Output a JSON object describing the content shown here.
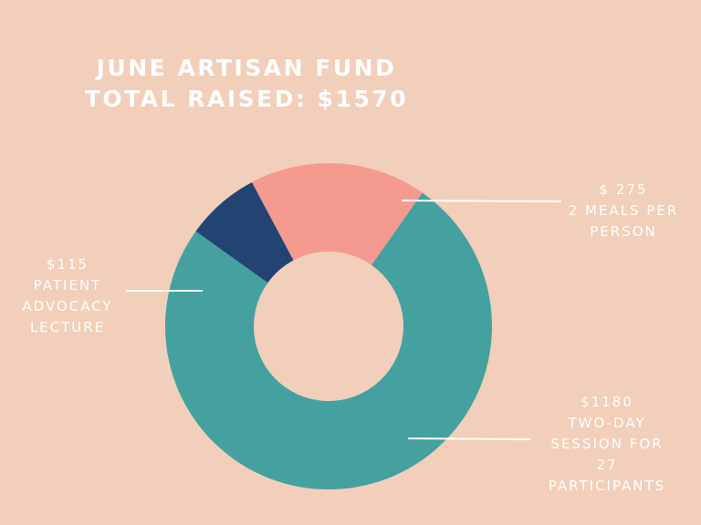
{
  "title": {
    "line1": "JUNE ARTISAN FUND",
    "line2": "TOTAL RAISED: $1570"
  },
  "colors": {
    "background": "#f2cfba",
    "text": "#ffffff",
    "meals": "#f49a8e",
    "session": "#45a0a0",
    "lecture": "#234473"
  },
  "chart_data": {
    "type": "pie",
    "title": "JUNE ARTISAN FUND TOTAL RAISED: $1570",
    "donut": true,
    "slices": [
      {
        "key": "meals",
        "value": 275,
        "color": "#f49a8e"
      },
      {
        "key": "session",
        "value": 1180,
        "color": "#45a0a0"
      },
      {
        "key": "lecture",
        "value": 115,
        "color": "#234473"
      }
    ]
  },
  "callouts": {
    "meals": {
      "amount": "$ 275",
      "lines": [
        "2 MEALS PER",
        "PERSON"
      ]
    },
    "lecture": {
      "amount": "$115",
      "lines": [
        "PATIENT",
        "ADVOCACY",
        "LECTURE"
      ]
    },
    "session": {
      "amount": "$1180",
      "lines": [
        "TWO-DAY",
        "SESSION FOR",
        "27",
        "PARTICIPANTS"
      ]
    }
  }
}
